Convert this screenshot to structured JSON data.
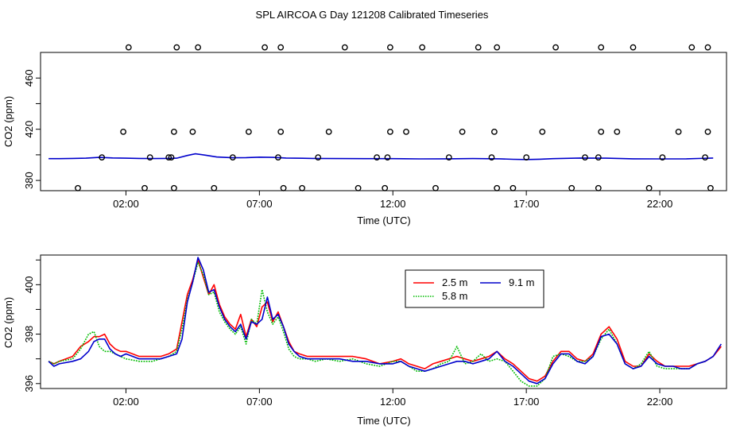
{
  "page": {
    "title": "SPL AIRCOA G  Day 121208  Calibrated Timeseries"
  },
  "chart_data": [
    {
      "type": "scatter",
      "id": "top",
      "title": "SPL AIRCOA G  Day 121208  Calibrated Timeseries",
      "xlabel": "Time (UTC)",
      "ylabel": "CO2 (ppm)",
      "xlim": [
        -1.2,
        24.5
      ],
      "ylim": [
        372,
        480
      ],
      "xticks": [
        {
          "v": 2,
          "label": "02:00"
        },
        {
          "v": 7,
          "label": "07:00"
        },
        {
          "v": 12,
          "label": "12:00"
        },
        {
          "v": 17,
          "label": "17:00"
        },
        {
          "v": 22,
          "label": "22:00"
        }
      ],
      "yticks": [
        380,
        420,
        460
      ],
      "yminor": [
        400,
        440
      ],
      "line_color": "#0000cc",
      "line": {
        "x": [
          -0.9,
          -0.5,
          0.0,
          0.5,
          1.0,
          1.5,
          2.0,
          2.5,
          3.0,
          3.5,
          3.9,
          4.3,
          4.6,
          5.0,
          5.4,
          6.0,
          6.5,
          7.0,
          7.5,
          8.0,
          9.0,
          10.0,
          11.0,
          12.0,
          13.0,
          14.0,
          15.0,
          16.0,
          16.5,
          17.0,
          17.5,
          18.0,
          19.0,
          20.0,
          21.0,
          22.0,
          23.0,
          24.0
        ],
        "y": [
          397,
          397,
          397.2,
          397.4,
          398,
          397.6,
          397.4,
          397.2,
          397.1,
          397.2,
          397.4,
          399.5,
          400.8,
          399.7,
          398.3,
          397.7,
          397.8,
          398.2,
          398,
          397.5,
          397.2,
          397.1,
          397,
          397,
          396.8,
          396.9,
          397.1,
          396.9,
          396.5,
          396.3,
          396.6,
          397,
          397.5,
          397.4,
          396.9,
          396.8,
          396.9,
          397.5
        ]
      },
      "points_x": [
        0.2,
        1.1,
        1.9,
        2.1,
        2.7,
        2.9,
        3.6,
        3.7,
        3.8,
        3.8,
        3.9,
        4.5,
        4.7,
        5.3,
        6.0,
        6.6,
        7.2,
        7.7,
        7.8,
        7.8,
        7.9,
        8.6,
        9.2,
        9.6,
        10.2,
        10.7,
        11.4,
        11.7,
        11.8,
        11.9,
        11.9,
        12.5,
        13.1,
        13.6,
        14.1,
        14.6,
        15.2,
        15.7,
        15.8,
        15.9,
        15.9,
        16.5,
        17.0,
        17.6,
        18.1,
        18.7,
        19.2,
        19.7,
        19.7,
        19.8,
        19.8,
        20.4,
        21.0,
        21.6,
        22.1,
        22.7,
        23.2,
        23.7,
        23.8,
        23.8,
        23.9
      ],
      "points_y": [
        374,
        398,
        418,
        484,
        374,
        398,
        398,
        398,
        374,
        418,
        484,
        418,
        484,
        374,
        398,
        418,
        484,
        398,
        418,
        484,
        374,
        374,
        398,
        418,
        484,
        374,
        398,
        374,
        398,
        418,
        484,
        418,
        484,
        374,
        398,
        418,
        484,
        398,
        418,
        484,
        374,
        374,
        398,
        418,
        484,
        374,
        398,
        374,
        398,
        418,
        484,
        418,
        484,
        374,
        398,
        418,
        484,
        398,
        418,
        484,
        374
      ]
    },
    {
      "type": "line",
      "id": "bottom",
      "xlabel": "Time (UTC)",
      "ylabel": "CO2 (ppm)",
      "xlim": [
        -1.2,
        24.5
      ],
      "ylim": [
        395.8,
        401.2
      ],
      "xticks": [
        {
          "v": 2,
          "label": "02:00"
        },
        {
          "v": 7,
          "label": "07:00"
        },
        {
          "v": 12,
          "label": "12:00"
        },
        {
          "v": 17,
          "label": "17:00"
        },
        {
          "v": 22,
          "label": "22:00"
        }
      ],
      "yticks": [
        396,
        398,
        400
      ],
      "yminor": [
        397,
        399,
        401
      ],
      "legend_position": "top-center",
      "series": [
        {
          "name": "2.5 m",
          "color": "#ff0000",
          "x": [
            -0.9,
            -0.7,
            -0.5,
            0.0,
            0.3,
            0.6,
            0.8,
            1.0,
            1.2,
            1.4,
            1.6,
            1.8,
            2.0,
            2.5,
            3.0,
            3.3,
            3.6,
            3.9,
            4.1,
            4.3,
            4.5,
            4.7,
            4.9,
            5.1,
            5.3,
            5.5,
            5.7,
            5.9,
            6.1,
            6.3,
            6.5,
            6.7,
            6.9,
            7.1,
            7.3,
            7.5,
            7.7,
            7.9,
            8.1,
            8.3,
            8.5,
            8.8,
            9.1,
            9.5,
            10.0,
            10.5,
            11.0,
            11.5,
            12.0,
            12.3,
            12.6,
            12.9,
            13.2,
            13.5,
            13.8,
            14.1,
            14.4,
            14.7,
            15.0,
            15.3,
            15.6,
            15.9,
            16.2,
            16.5,
            16.8,
            17.1,
            17.4,
            17.7,
            18.0,
            18.3,
            18.6,
            18.9,
            19.2,
            19.5,
            19.8,
            20.1,
            20.4,
            20.7,
            21.0,
            21.3,
            21.6,
            21.9,
            22.2,
            22.5,
            22.8,
            23.1,
            23.4,
            23.7,
            24.0,
            24.3
          ],
          "y": [
            396.9,
            396.8,
            396.9,
            397.1,
            397.5,
            397.7,
            397.9,
            397.9,
            398.0,
            397.6,
            397.4,
            397.3,
            397.3,
            397.1,
            397.1,
            397.1,
            397.2,
            397.4,
            398.5,
            399.6,
            400.2,
            401.0,
            400.3,
            399.6,
            400.0,
            399.2,
            398.7,
            398.4,
            398.2,
            398.8,
            397.9,
            398.6,
            398.3,
            399.1,
            399.3,
            398.5,
            398.9,
            398.3,
            397.7,
            397.3,
            397.2,
            397.1,
            397.1,
            397.1,
            397.1,
            397.1,
            397.0,
            396.8,
            396.9,
            397.0,
            396.8,
            396.7,
            396.6,
            396.8,
            396.9,
            397.0,
            397.1,
            397.0,
            396.9,
            397.0,
            397.1,
            397.3,
            397.0,
            396.8,
            396.5,
            396.2,
            396.1,
            396.3,
            396.9,
            397.3,
            397.3,
            397.0,
            396.9,
            397.2,
            398.0,
            398.3,
            397.8,
            396.9,
            396.7,
            396.7,
            397.2,
            396.9,
            396.7,
            396.7,
            396.7,
            396.7,
            396.8,
            396.9,
            397.1,
            397.5
          ],
          "style": "solid"
        },
        {
          "name": "5.8 m",
          "color": "#00bb00",
          "x": [
            -0.9,
            -0.7,
            -0.5,
            0.0,
            0.3,
            0.6,
            0.8,
            1.0,
            1.2,
            1.4,
            1.6,
            1.8,
            2.0,
            2.5,
            3.0,
            3.3,
            3.6,
            3.9,
            4.1,
            4.3,
            4.5,
            4.7,
            4.9,
            5.1,
            5.3,
            5.5,
            5.7,
            5.9,
            6.1,
            6.3,
            6.5,
            6.7,
            6.9,
            7.1,
            7.3,
            7.5,
            7.7,
            7.9,
            8.1,
            8.3,
            8.5,
            8.8,
            9.1,
            9.5,
            10.0,
            10.5,
            11.0,
            11.5,
            12.0,
            12.3,
            12.6,
            12.9,
            13.2,
            13.5,
            13.8,
            14.1,
            14.4,
            14.7,
            15.0,
            15.3,
            15.6,
            15.9,
            16.2,
            16.5,
            16.8,
            17.1,
            17.4,
            17.7,
            18.0,
            18.3,
            18.6,
            18.9,
            19.2,
            19.5,
            19.8,
            20.1,
            20.4,
            20.7,
            21.0,
            21.3,
            21.6,
            21.9,
            22.2,
            22.5,
            22.8,
            23.1,
            23.4,
            23.7
          ],
          "y": [
            396.9,
            396.8,
            396.9,
            397.0,
            397.4,
            398.0,
            398.1,
            397.5,
            397.3,
            397.3,
            397.2,
            397.1,
            397.0,
            396.9,
            396.9,
            397.0,
            397.1,
            397.3,
            398.2,
            399.4,
            400.1,
            400.9,
            400.4,
            399.6,
            399.7,
            398.9,
            398.5,
            398.2,
            398.0,
            398.3,
            397.6,
            398.6,
            398.4,
            399.8,
            398.9,
            398.4,
            398.7,
            398.1,
            397.4,
            397.1,
            397.0,
            397.0,
            396.9,
            397.0,
            396.9,
            397.0,
            396.8,
            396.7,
            396.9,
            396.9,
            396.7,
            396.5,
            396.5,
            396.6,
            396.8,
            396.9,
            397.5,
            396.8,
            396.9,
            397.2,
            396.9,
            397.0,
            396.9,
            396.5,
            396.1,
            395.9,
            395.9,
            396.2,
            397.1,
            397.2,
            397.1,
            396.9,
            396.9,
            397.1,
            397.8,
            398.2,
            397.6,
            396.8,
            396.6,
            396.8,
            397.3,
            396.7,
            396.6,
            396.6,
            396.6,
            396.6,
            396.8,
            396.9
          ],
          "style": "dotted"
        },
        {
          "name": "9.1 m",
          "color": "#0000cc",
          "x": [
            -0.9,
            -0.7,
            -0.5,
            0.0,
            0.3,
            0.6,
            0.8,
            1.0,
            1.2,
            1.4,
            1.6,
            1.8,
            2.0,
            2.5,
            3.0,
            3.3,
            3.6,
            3.9,
            4.1,
            4.3,
            4.5,
            4.7,
            4.9,
            5.1,
            5.3,
            5.5,
            5.7,
            5.9,
            6.1,
            6.3,
            6.5,
            6.7,
            6.9,
            7.1,
            7.3,
            7.5,
            7.7,
            7.9,
            8.1,
            8.3,
            8.5,
            8.8,
            9.1,
            9.5,
            10.0,
            10.5,
            11.0,
            11.5,
            12.0,
            12.3,
            12.6,
            12.9,
            13.2,
            13.5,
            13.8,
            14.1,
            14.4,
            14.7,
            15.0,
            15.3,
            15.6,
            15.9,
            16.2,
            16.5,
            16.8,
            17.1,
            17.4,
            17.7,
            18.0,
            18.3,
            18.6,
            18.9,
            19.2,
            19.5,
            19.8,
            20.1,
            20.4,
            20.7,
            21.0,
            21.3,
            21.6,
            21.9,
            22.2,
            22.5,
            22.8,
            23.1,
            23.4,
            23.7,
            24.0,
            24.3
          ],
          "y": [
            396.9,
            396.7,
            396.8,
            396.9,
            397.0,
            397.3,
            397.7,
            397.8,
            397.8,
            397.4,
            397.2,
            397.1,
            397.2,
            397.0,
            397.0,
            397.0,
            397.1,
            397.2,
            397.8,
            399.3,
            400.1,
            401.1,
            400.6,
            399.7,
            399.8,
            399.1,
            398.6,
            398.3,
            398.1,
            398.4,
            397.8,
            398.5,
            398.4,
            398.6,
            399.5,
            398.6,
            398.8,
            398.3,
            397.6,
            397.3,
            397.1,
            397.0,
            397.0,
            397.0,
            397.0,
            396.9,
            396.9,
            396.8,
            396.8,
            396.9,
            396.7,
            396.6,
            396.5,
            396.6,
            396.7,
            396.8,
            396.9,
            396.9,
            396.8,
            396.9,
            397.0,
            397.3,
            396.9,
            396.7,
            396.4,
            396.1,
            396.0,
            396.2,
            396.8,
            397.2,
            397.2,
            396.9,
            396.8,
            397.1,
            397.9,
            398.0,
            397.6,
            396.8,
            396.6,
            396.7,
            397.1,
            396.8,
            396.7,
            396.7,
            396.6,
            396.6,
            396.8,
            396.9,
            397.1,
            397.6
          ],
          "style": "solid"
        }
      ]
    }
  ]
}
